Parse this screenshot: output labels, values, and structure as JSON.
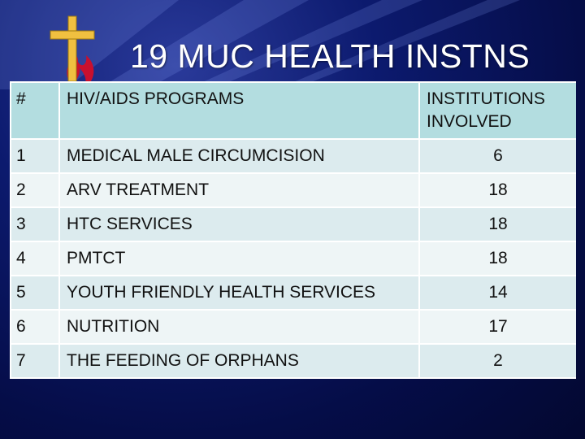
{
  "slide": {
    "title": "19 MUC HEALTH INSTNS",
    "logo_icon": "cross-flame-logo-icon"
  },
  "table": {
    "headers": [
      "#",
      "HIV/AIDS PROGRAMS",
      "INSTITUTIONS INVOLVED"
    ],
    "rows": [
      {
        "index": "1",
        "program": "MEDICAL MALE CIRCUMCISION",
        "institutions": "6"
      },
      {
        "index": "2",
        "program": "ARV TREATMENT",
        "institutions": "18"
      },
      {
        "index": "3",
        "program": "HTC SERVICES",
        "institutions": "18"
      },
      {
        "index": "4",
        "program": "PMTCT",
        "institutions": "18"
      },
      {
        "index": "5",
        "program": "YOUTH FRIENDLY HEALTH SERVICES",
        "institutions": "14"
      },
      {
        "index": "6",
        "program": "NUTRITION",
        "institutions": "17"
      },
      {
        "index": "7",
        "program": "THE FEEDING OF ORPHANS",
        "institutions": "2"
      }
    ]
  },
  "colors": {
    "background": "#0c1a6e",
    "header_row": "#b3dde0",
    "row_odd": "#dcebee",
    "row_even": "#eef5f6",
    "flame": "#c8102e",
    "cross": "#f0c040"
  }
}
